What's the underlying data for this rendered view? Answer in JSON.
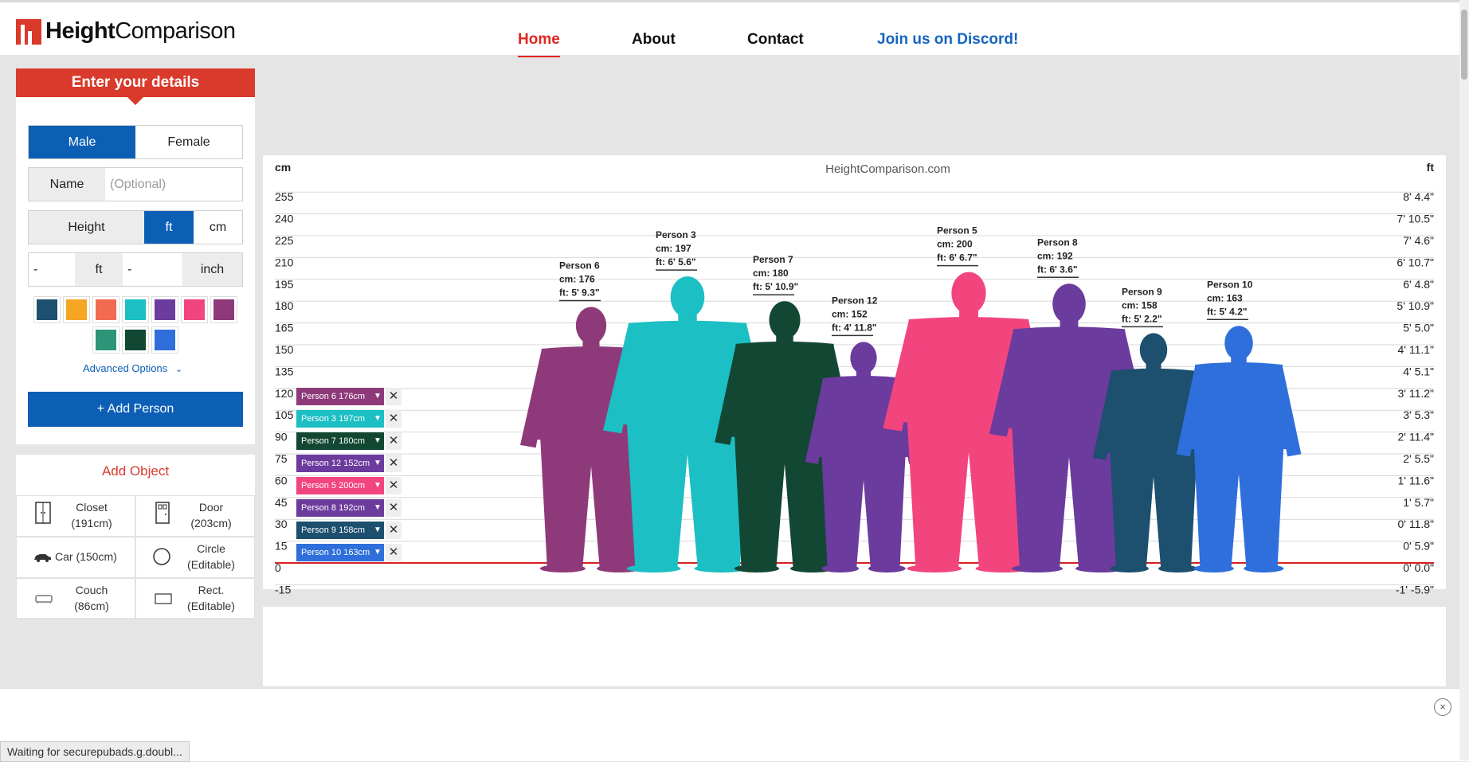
{
  "brand": {
    "bold": "Height",
    "light": "Comparison"
  },
  "nav": [
    {
      "label": "Home",
      "active": true
    },
    {
      "label": "About"
    },
    {
      "label": "Contact"
    },
    {
      "label": "Join us on Discord!"
    }
  ],
  "form": {
    "title": "Enter your details",
    "gender_male": "Male",
    "gender_female": "Female",
    "name_label": "Name",
    "name_placeholder": "(Optional)",
    "height_label": "Height",
    "unit_ft": "ft",
    "unit_cm": "cm",
    "ft_value": "-",
    "ft_unit": "ft",
    "inch_value": "-",
    "inch_unit": "inch",
    "swatches": [
      "#1d4f6e",
      "#f5a623",
      "#f26b50",
      "#1bbfc4",
      "#6b3b9e",
      "#f2457e",
      "#8e3a7a",
      "#2e9477",
      "#124733",
      "#2f6fdc"
    ],
    "advanced": "Advanced Options",
    "add_person": "+ Add Person"
  },
  "objects": {
    "title": "Add Object",
    "items": [
      {
        "label": "Closet",
        "sub": "(191cm)"
      },
      {
        "label": "Door",
        "sub": "(203cm)"
      },
      {
        "label": "Car (150cm)",
        "sub": ""
      },
      {
        "label": "Circle",
        "sub": "(Editable)"
      },
      {
        "label": "Couch",
        "sub": "(86cm)"
      },
      {
        "label": "Rect.",
        "sub": "(Editable)"
      }
    ]
  },
  "chart_data": {
    "type": "height-comparison",
    "title": "HeightComparison.com",
    "left_unit": "cm",
    "right_unit": "ft",
    "cm_ticks": [
      "255",
      "240",
      "225",
      "210",
      "195",
      "180",
      "165",
      "150",
      "135",
      "120",
      "105",
      "90",
      "75",
      "60",
      "45",
      "30",
      "15",
      "0",
      "-15"
    ],
    "ft_ticks": [
      "8' 4.4\"",
      "7' 10.5\"",
      "7' 4.6\"",
      "6' 10.7\"",
      "6' 4.8\"",
      "5' 10.9\"",
      "5' 5.0\"",
      "4' 11.1\"",
      "4' 5.1\"",
      "3' 11.2\"",
      "3' 5.3\"",
      "2' 11.4\"",
      "2' 5.5\"",
      "1' 11.6\"",
      "1' 5.7\"",
      "0' 11.8\"",
      "0' 5.9\"",
      "0' 0.0\"",
      "-1' -5.9\""
    ],
    "people": [
      {
        "name": "Person 6",
        "cm": 176,
        "ft": "5' 9.3\"",
        "color": "#8e3a7a",
        "legend": "Person 6 176cm",
        "gender": "male"
      },
      {
        "name": "Person 3",
        "cm": 197,
        "ft": "6' 5.6\"",
        "color": "#1bbfc4",
        "legend": "Person 3 197cm",
        "gender": "male"
      },
      {
        "name": "Person 7",
        "cm": 180,
        "ft": "5' 10.9\"",
        "color": "#124733",
        "legend": "Person 7 180cm",
        "gender": "male"
      },
      {
        "name": "Person 12",
        "cm": 152,
        "ft": "4' 11.8\"",
        "color": "#6b3b9e",
        "legend": "Person 12 152cm",
        "gender": "male"
      },
      {
        "name": "Person 5",
        "cm": 200,
        "ft": "6' 6.7\"",
        "color": "#f2457e",
        "legend": "Person 5 200cm",
        "gender": "male"
      },
      {
        "name": "Person 8",
        "cm": 192,
        "ft": "6' 3.6\"",
        "color": "#6b3b9e",
        "legend": "Person 8 192cm",
        "gender": "male"
      },
      {
        "name": "Person 9",
        "cm": 158,
        "ft": "5' 2.2\"",
        "color": "#1d4f6e",
        "legend": "Person 9 158cm",
        "gender": "male"
      },
      {
        "name": "Person 10",
        "cm": 163,
        "ft": "5' 4.2\"",
        "color": "#2f6fdc",
        "legend": "Person 10 163cm",
        "gender": "male"
      }
    ]
  },
  "status_text": "Waiting for securepubads.g.doubl...",
  "close_glyph": "×"
}
